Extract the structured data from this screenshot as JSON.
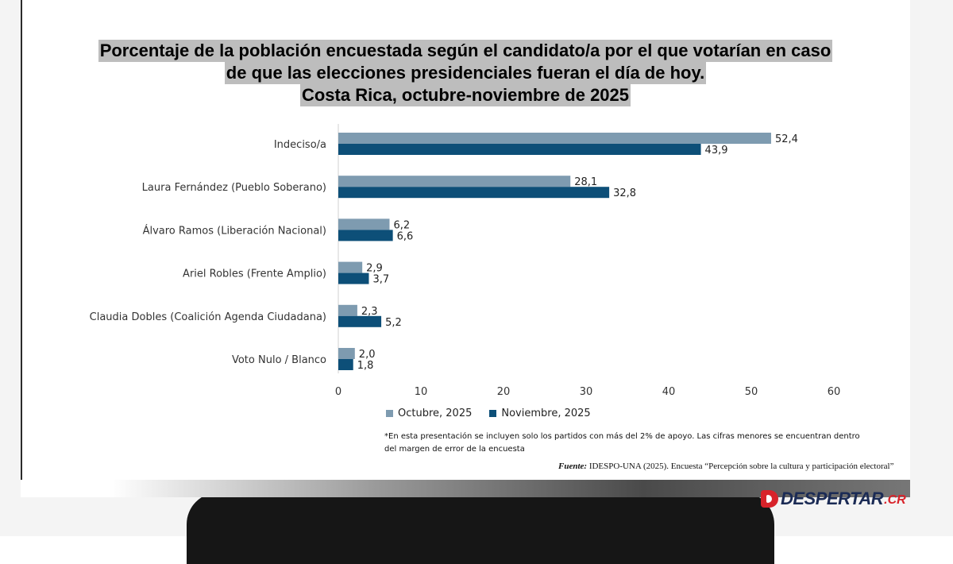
{
  "title_lines": [
    "Porcentaje de la población encuestada según el candidato/a por el que votarían en caso",
    "de que las elecciones presidenciales fueran el día de hoy.",
    "Costa Rica, octubre-noviembre de 2025"
  ],
  "chart_data": {
    "type": "bar",
    "orientation": "horizontal",
    "categories": [
      "Indeciso/a",
      "Laura Fernández (Pueblo Soberano)",
      "Álvaro Ramos (Liberación Nacional)",
      "Ariel Robles (Frente Amplio)",
      "Claudia Dobles (Coalición Agenda Ciudadana)",
      "Voto Nulo / Blanco"
    ],
    "series": [
      {
        "name": "Octubre, 2025",
        "values": [
          52.4,
          28.1,
          6.2,
          2.9,
          2.3,
          2.0
        ],
        "labels": [
          "52,4",
          "28,1",
          "6,2",
          "2,9",
          "2,3",
          "2,0"
        ],
        "color": "#7e9bb0"
      },
      {
        "name": "Noviembre, 2025",
        "values": [
          43.9,
          32.8,
          6.6,
          3.7,
          5.2,
          1.8
        ],
        "labels": [
          "43,9",
          "32,8",
          "6,6",
          "3,7",
          "5,2",
          "1,8"
        ],
        "color": "#0d4f78"
      }
    ],
    "xlim": [
      0,
      60
    ],
    "xticks": [
      0,
      10,
      20,
      30,
      40,
      50,
      60
    ],
    "grid": false,
    "legend_position": "bottom"
  },
  "footnote": "*En esta presentación se incluyen solo los partidos con más del 2% de apoyo. Las cifras menores se encuentran dentro del margen de error de la encuesta",
  "source": {
    "label": "Fuente:",
    "text": " IDESPO-UNA (2025). Encuesta “Percepción sobre la cultura y participación electoral”"
  },
  "logo": {
    "main": "DESPERTAR",
    "suffix": ".CR"
  }
}
